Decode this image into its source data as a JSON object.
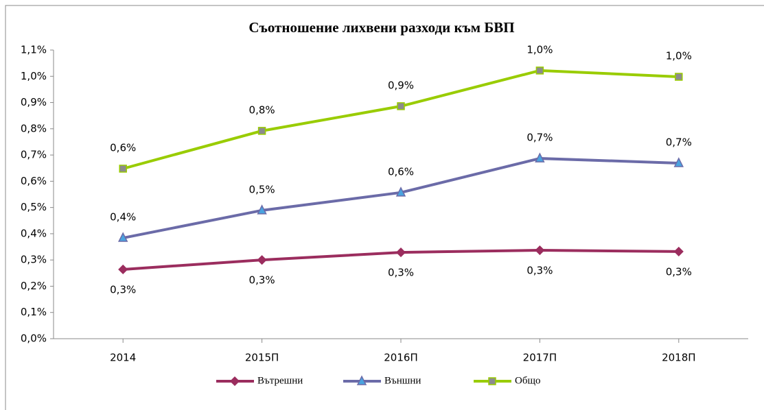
{
  "chart_data": {
    "type": "line",
    "title": "Съотношение лихвени   разходи   към   БВП",
    "categories": [
      "2014",
      "2015П",
      "2016П",
      "2017П",
      "2018П"
    ],
    "ylim": [
      0,
      1.1
    ],
    "yticks": [
      {
        "value": 0,
        "label": "0,0%"
      },
      {
        "value": 0.1,
        "label": "0,1%"
      },
      {
        "value": 0.2,
        "label": "0,2%"
      },
      {
        "value": 0.3,
        "label": "0,3%"
      },
      {
        "value": 0.4,
        "label": "0,4%"
      },
      {
        "value": 0.5,
        "label": "0,5%"
      },
      {
        "value": 0.6,
        "label": "0,6%"
      },
      {
        "value": 0.7,
        "label": "0,7%"
      },
      {
        "value": 0.8,
        "label": "0,8%"
      },
      {
        "value": 0.9,
        "label": "0,9%"
      },
      {
        "value": 1.0,
        "label": "1,0%"
      },
      {
        "value": 1.1,
        "label": "1,1%"
      }
    ],
    "grid": false,
    "legend": "bottom",
    "series": [
      {
        "name": "Вътрешни",
        "color": "#9b2d5e",
        "marker": "diamond",
        "marker_color": "#9b2d5e",
        "values": [
          0.264,
          0.3,
          0.329,
          0.337,
          0.332
        ],
        "value_labels": [
          "0,3%",
          "0,3%",
          "0,3%",
          "0,3%",
          "0,3%"
        ]
      },
      {
        "name": "Външни",
        "color": "#6b6ba8",
        "marker": "triangle",
        "marker_color": "#4aa3df",
        "values": [
          0.384,
          0.489,
          0.557,
          0.687,
          0.669
        ],
        "value_labels": [
          "0,4%",
          "0,5%",
          "0,6%",
          "0,7%",
          "0,7%"
        ]
      },
      {
        "name": "Общо",
        "color": "#99cc00",
        "marker": "square",
        "marker_color": "#8c8c8c",
        "values": [
          0.648,
          0.792,
          0.886,
          1.022,
          0.998
        ],
        "value_labels": [
          "0,6%",
          "0,8%",
          "0,9%",
          "1,0%",
          "1,0%"
        ]
      }
    ]
  }
}
